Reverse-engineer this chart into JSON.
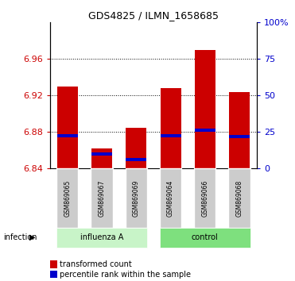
{
  "title": "GDS4825 / ILMN_1658685",
  "samples": [
    "GSM869065",
    "GSM869067",
    "GSM869069",
    "GSM869064",
    "GSM869066",
    "GSM869068"
  ],
  "bar_color": "#CC0000",
  "blue_color": "#0000CC",
  "ylim_left": [
    6.84,
    7.0
  ],
  "ylim_right": [
    0,
    100
  ],
  "yticks_left": [
    6.84,
    6.88,
    6.92,
    6.96
  ],
  "yticks_right": [
    0,
    25,
    50,
    75,
    100
  ],
  "base_value": 6.84,
  "bar_tops": [
    6.93,
    6.862,
    6.885,
    6.928,
    6.97,
    6.924
  ],
  "blue_values": [
    6.876,
    6.856,
    6.85,
    6.876,
    6.882,
    6.875
  ],
  "blue_thickness": 0.004,
  "tick_label_color_left": "#CC0000",
  "tick_label_color_right": "#0000CC",
  "group1_color_light": "#C8F4C8",
  "group2_color_dark": "#7EE07E",
  "gray_box": "#CCCCCC",
  "legend_red": "transformed count",
  "legend_blue": "percentile rank within the sample"
}
